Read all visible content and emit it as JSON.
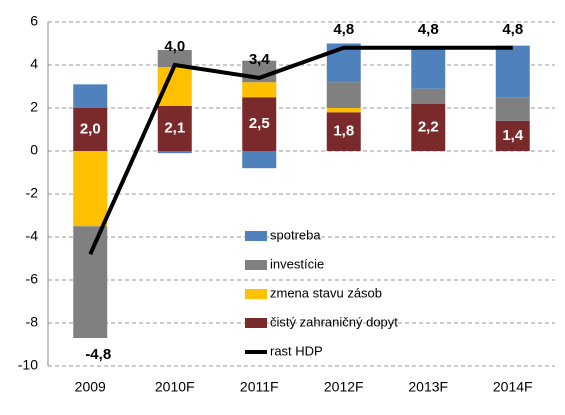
{
  "chart_data": {
    "type": "bar",
    "categories": [
      "2009",
      "2010F",
      "2011F",
      "2012F",
      "2013F",
      "2014F"
    ],
    "ylim": [
      -10,
      6
    ],
    "yticks": [
      -10,
      -8,
      -6,
      -4,
      -2,
      0,
      2,
      4,
      6
    ],
    "grid": true,
    "stacked": true,
    "series": [
      {
        "name": "čistý zahraničný dopyt",
        "color": "#7a2a2a",
        "values": [
          2.0,
          2.1,
          2.5,
          1.8,
          2.2,
          1.4
        ],
        "value_labels": [
          "2,0",
          "2,1",
          "2,5",
          "1,8",
          "2,2",
          "1,4"
        ]
      },
      {
        "name": "zmena stavu zásob",
        "color": "#ffc000",
        "values": [
          -3.5,
          1.8,
          0.7,
          0.2,
          0,
          0
        ]
      },
      {
        "name": "investície",
        "color": "#808080",
        "values": [
          -5.2,
          0.8,
          1.0,
          1.2,
          0.7,
          1.1
        ]
      },
      {
        "name": "spotreba",
        "color": "#4f81bd",
        "values": [
          1.1,
          -0.1,
          -0.8,
          1.8,
          1.9,
          2.4
        ]
      },
      {
        "name": "rast HDP",
        "color": "#000000",
        "type": "line",
        "values": [
          -4.8,
          4.0,
          3.4,
          4.8,
          4.8,
          4.8
        ],
        "value_labels": [
          "-4,8",
          "4,0",
          "3,4",
          "4,8",
          "4,8",
          "4,8"
        ]
      }
    ]
  }
}
